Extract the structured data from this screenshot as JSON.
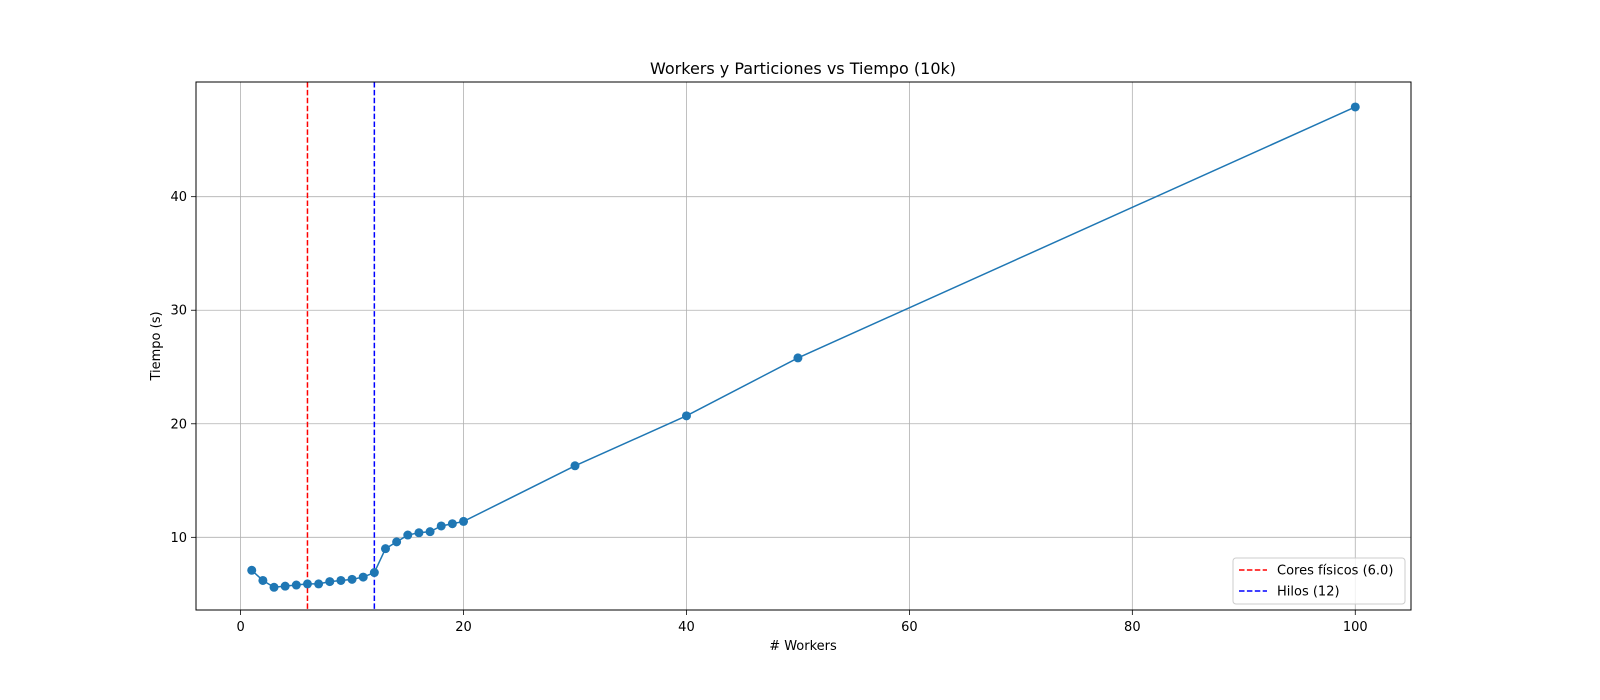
{
  "chart_data": {
    "type": "line",
    "title": "Workers y Particiones vs Tiempo (10k)",
    "xlabel": "# Workers",
    "ylabel": "Tiempo (s)",
    "xlim": [
      -4,
      105
    ],
    "ylim": [
      3.6,
      50.1
    ],
    "xticks": [
      0,
      20,
      40,
      60,
      80,
      100
    ],
    "yticks": [
      10,
      20,
      30,
      40
    ],
    "grid": true,
    "legend_position": "lower-right",
    "series": [
      {
        "color": "#1f77b4",
        "marker": "circle",
        "x": [
          1,
          2,
          3,
          4,
          5,
          6,
          7,
          8,
          9,
          10,
          11,
          12,
          13,
          14,
          15,
          16,
          17,
          18,
          19,
          20,
          30,
          40,
          50,
          100
        ],
        "y": [
          7.1,
          6.2,
          5.6,
          5.7,
          5.8,
          5.9,
          5.9,
          6.1,
          6.2,
          6.3,
          6.5,
          6.9,
          9.0,
          9.6,
          10.2,
          10.4,
          10.5,
          11.0,
          11.2,
          11.4,
          16.3,
          20.7,
          25.8,
          47.9
        ]
      }
    ],
    "reference_lines": [
      {
        "x": 6,
        "label": "Cores físicos (6.0)",
        "color": "#ff0000",
        "style": "dashed"
      },
      {
        "x": 12,
        "label": "Hilos (12)",
        "color": "#0000ff",
        "style": "dashed"
      }
    ]
  }
}
